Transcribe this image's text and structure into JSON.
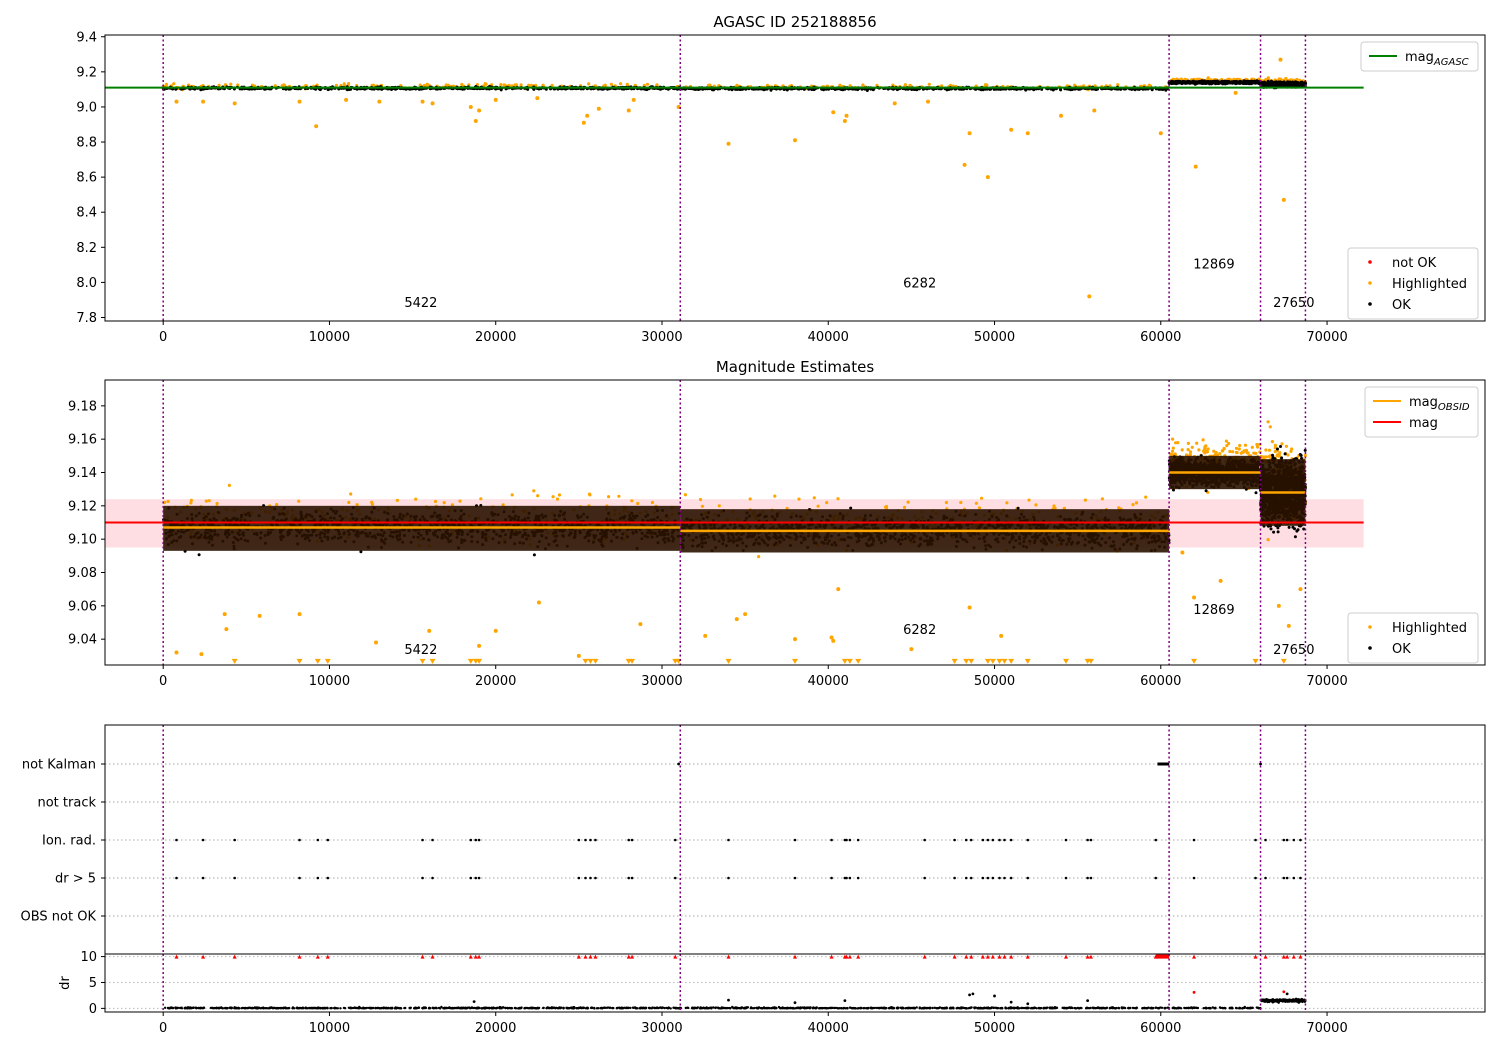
{
  "figure_colors": {
    "ok": "#000000",
    "highlighted": "#ffa500",
    "not_ok": "#ff0000",
    "agasc_line": "#008000",
    "mag_line": "#ff0000",
    "band": "#ffb6c1",
    "obsid_line": "#ffa500",
    "boundary": "#800080",
    "body_band": "#2a1200"
  },
  "chart_data": [
    {
      "type": "scatter",
      "title": "AGASC ID 252188856",
      "xlim": [
        -3500,
        79500
      ],
      "ylim": [
        7.78,
        9.41
      ],
      "x_ticks": [
        0,
        10000,
        20000,
        30000,
        40000,
        50000,
        60000,
        70000
      ],
      "x_tick_labels": [
        "0",
        "10000",
        "20000",
        "30000",
        "40000",
        "50000",
        "60000",
        "70000"
      ],
      "y_ticks": [
        7.8,
        8.0,
        8.2,
        8.4,
        8.6,
        8.8,
        9.0,
        9.2,
        9.4
      ],
      "y_tick_labels": [
        "7.8",
        "8.0",
        "8.2",
        "8.4",
        "8.6",
        "8.8",
        "9.0",
        "9.2",
        "9.4"
      ],
      "mag_agasc": 9.11,
      "obsid_boundaries": [
        0,
        31100,
        60500,
        66000,
        68700
      ],
      "obsid_labels": [
        {
          "text": "5422",
          "x": 15500,
          "y": 7.86
        },
        {
          "text": "6282",
          "x": 45500,
          "y": 7.97
        },
        {
          "text": "12869",
          "x": 63200,
          "y": 8.08
        },
        {
          "text": "27650",
          "x": 68000,
          "y": 7.86
        }
      ],
      "segments": [
        {
          "x0": 0,
          "x1": 31100,
          "center": 9.107,
          "low": 9.092,
          "high": 9.127
        },
        {
          "x0": 31100,
          "x1": 60500,
          "center": 9.105,
          "low": 9.09,
          "high": 9.125
        },
        {
          "x0": 60500,
          "x1": 66000,
          "center": 9.14,
          "low": 9.127,
          "high": 9.16
        },
        {
          "x0": 66000,
          "x1": 68700,
          "center": 9.128,
          "low": 9.098,
          "high": 9.17
        }
      ],
      "highlighted_outliers": [
        [
          800,
          9.03
        ],
        [
          2400,
          9.03
        ],
        [
          4300,
          9.02
        ],
        [
          8200,
          9.03
        ],
        [
          9200,
          8.89
        ],
        [
          11000,
          9.04
        ],
        [
          13000,
          9.03
        ],
        [
          15600,
          9.03
        ],
        [
          16200,
          9.02
        ],
        [
          18500,
          9.0
        ],
        [
          18800,
          8.92
        ],
        [
          19000,
          8.98
        ],
        [
          20000,
          9.04
        ],
        [
          22500,
          9.05
        ],
        [
          25300,
          8.91
        ],
        [
          25500,
          8.95
        ],
        [
          26200,
          8.99
        ],
        [
          28000,
          8.98
        ],
        [
          28300,
          9.04
        ],
        [
          31000,
          9.0
        ],
        [
          34000,
          8.79
        ],
        [
          38000,
          8.81
        ],
        [
          40300,
          8.97
        ],
        [
          41000,
          8.92
        ],
        [
          41100,
          8.95
        ],
        [
          44000,
          9.02
        ],
        [
          46000,
          9.03
        ],
        [
          48200,
          8.67
        ],
        [
          48500,
          8.85
        ],
        [
          49600,
          8.6
        ],
        [
          51000,
          8.87
        ],
        [
          52000,
          8.85
        ],
        [
          54000,
          8.95
        ],
        [
          55700,
          7.92
        ],
        [
          56000,
          8.98
        ],
        [
          60000,
          8.85
        ],
        [
          62100,
          8.66
        ],
        [
          64500,
          9.08
        ],
        [
          67200,
          9.27
        ],
        [
          67400,
          8.47
        ]
      ],
      "legend_top": [
        {
          "label": "mag",
          "sub": "AGASC"
        }
      ],
      "legend_bottom": [
        {
          "label": "not OK"
        },
        {
          "label": "Highlighted"
        },
        {
          "label": "OK"
        }
      ]
    },
    {
      "type": "scatter",
      "title": "Magnitude Estimates",
      "xlim": [
        -3500,
        79500
      ],
      "ylim": [
        9.0245,
        9.1955
      ],
      "x_ticks": [
        0,
        10000,
        20000,
        30000,
        40000,
        50000,
        60000,
        70000
      ],
      "x_tick_labels": [
        "0",
        "10000",
        "20000",
        "30000",
        "40000",
        "50000",
        "60000",
        "70000"
      ],
      "y_ticks": [
        9.04,
        9.06,
        9.08,
        9.1,
        9.12,
        9.14,
        9.16,
        9.18
      ],
      "y_tick_labels": [
        "9.04",
        "9.06",
        "9.08",
        "9.10",
        "9.12",
        "9.14",
        "9.16",
        "9.18"
      ],
      "mag": 9.11,
      "mag_band": [
        9.095,
        9.124
      ],
      "obsid_boundaries": [
        0,
        31100,
        60500,
        66000,
        68700
      ],
      "obsid_labels": [
        {
          "text": "5422",
          "x": 15500,
          "y": 9.031
        },
        {
          "text": "6282",
          "x": 45500,
          "y": 9.043
        },
        {
          "text": "12869",
          "x": 63200,
          "y": 9.055
        },
        {
          "text": "27650",
          "x": 68000,
          "y": 9.031
        }
      ],
      "segments": [
        {
          "x0": 0,
          "x1": 31100,
          "center": 9.107,
          "low": 9.085,
          "high": 9.132,
          "body_low": 9.093,
          "body_high": 9.12
        },
        {
          "x0": 31100,
          "x1": 60500,
          "center": 9.105,
          "low": 9.082,
          "high": 9.129,
          "body_low": 9.092,
          "body_high": 9.118
        },
        {
          "x0": 60500,
          "x1": 66000,
          "center": 9.14,
          "low": 9.127,
          "high": 9.163,
          "body_low": 9.13,
          "body_high": 9.15
        },
        {
          "x0": 66000,
          "x1": 68700,
          "center": 9.128,
          "low": 9.085,
          "high": 9.175,
          "body_low": 9.108,
          "body_high": 9.148
        }
      ],
      "highlighted_outliers": [
        [
          800,
          9.032
        ],
        [
          2300,
          9.031
        ],
        [
          3700,
          9.055
        ],
        [
          3800,
          9.046
        ],
        [
          5800,
          9.054
        ],
        [
          8200,
          9.055
        ],
        [
          12800,
          9.038
        ],
        [
          16000,
          9.045
        ],
        [
          19000,
          9.036
        ],
        [
          20000,
          9.045
        ],
        [
          22600,
          9.062
        ],
        [
          25000,
          9.03
        ],
        [
          28700,
          9.049
        ],
        [
          32600,
          9.042
        ],
        [
          34500,
          9.052
        ],
        [
          35000,
          9.055
        ],
        [
          38000,
          9.04
        ],
        [
          40200,
          9.041
        ],
        [
          40300,
          9.039
        ],
        [
          40600,
          9.07
        ],
        [
          45000,
          9.034
        ],
        [
          48500,
          9.059
        ],
        [
          50400,
          9.042
        ],
        [
          61300,
          9.092
        ],
        [
          62000,
          9.065
        ],
        [
          63600,
          9.075
        ],
        [
          67100,
          9.06
        ],
        [
          67700,
          9.048
        ],
        [
          68400,
          9.07
        ]
      ],
      "lower_limits_x": [
        4300,
        8200,
        9300,
        9900,
        15600,
        16200,
        18500,
        18800,
        19000,
        25400,
        25700,
        26000,
        28000,
        28200,
        30800,
        31000,
        34000,
        38000,
        41000,
        41300,
        41800,
        47600,
        48300,
        48600,
        49600,
        49900,
        50300,
        50600,
        51000,
        52000,
        54300,
        55600,
        55800,
        62000,
        65700,
        67400
      ],
      "legend_top": [
        {
          "label": "mag",
          "sub": "OBSID"
        },
        {
          "label": "mag"
        }
      ],
      "legend_bottom": [
        {
          "label": "Highlighted"
        },
        {
          "label": "OK"
        }
      ]
    },
    {
      "type": "scatter",
      "title": "",
      "categories": [
        "not Kalman",
        "not track",
        "Ion. rad.",
        "dr > 5",
        "OBS not OK"
      ],
      "flag_points_x": [
        800,
        2400,
        4300,
        8200,
        9300,
        9900,
        15600,
        16200,
        18500,
        18800,
        19000,
        25000,
        25400,
        25700,
        26000,
        28000,
        28200,
        30800,
        34000,
        38000,
        40200,
        41000,
        41100,
        41300,
        41800,
        45800,
        47600,
        48300,
        48600,
        49300,
        49600,
        49900,
        50300,
        50600,
        51000,
        52000,
        54300,
        55600,
        55800,
        59700,
        62000,
        65700,
        66300,
        67400,
        67600,
        68000,
        68400
      ],
      "not_kalman_x": [
        31000,
        60000,
        60200,
        60400,
        66000
      ],
      "xlim": [
        -3500,
        79500
      ],
      "obsid_boundaries": [
        0,
        31100,
        60500,
        66000,
        68700
      ]
    },
    {
      "type": "scatter",
      "title": "",
      "ylabel": "dr",
      "xlim": [
        -3500,
        79500
      ],
      "ylim": [
        -0.7,
        10.5
      ],
      "x_ticks": [
        0,
        10000,
        20000,
        30000,
        40000,
        50000,
        60000,
        70000
      ],
      "x_tick_labels": [
        "0",
        "10000",
        "20000",
        "30000",
        "40000",
        "50000",
        "60000",
        "70000"
      ],
      "y_ticks": [
        0,
        5,
        10
      ],
      "y_tick_labels": [
        "0",
        "5",
        "10"
      ],
      "clip_value": 10,
      "obsid_boundaries": [
        0,
        31100,
        60500,
        66000,
        68700
      ],
      "dr_outliers": [
        [
          18700,
          1.3
        ],
        [
          34000,
          1.6
        ],
        [
          38000,
          1.1
        ],
        [
          41000,
          1.5
        ],
        [
          48500,
          2.6
        ],
        [
          48700,
          2.8
        ],
        [
          50000,
          2.4
        ],
        [
          51000,
          1.2
        ],
        [
          52000,
          0.9
        ],
        [
          55600,
          1.5
        ],
        [
          62000,
          3.1
        ],
        [
          67400,
          3.2
        ],
        [
          67600,
          2.8
        ]
      ]
    }
  ]
}
